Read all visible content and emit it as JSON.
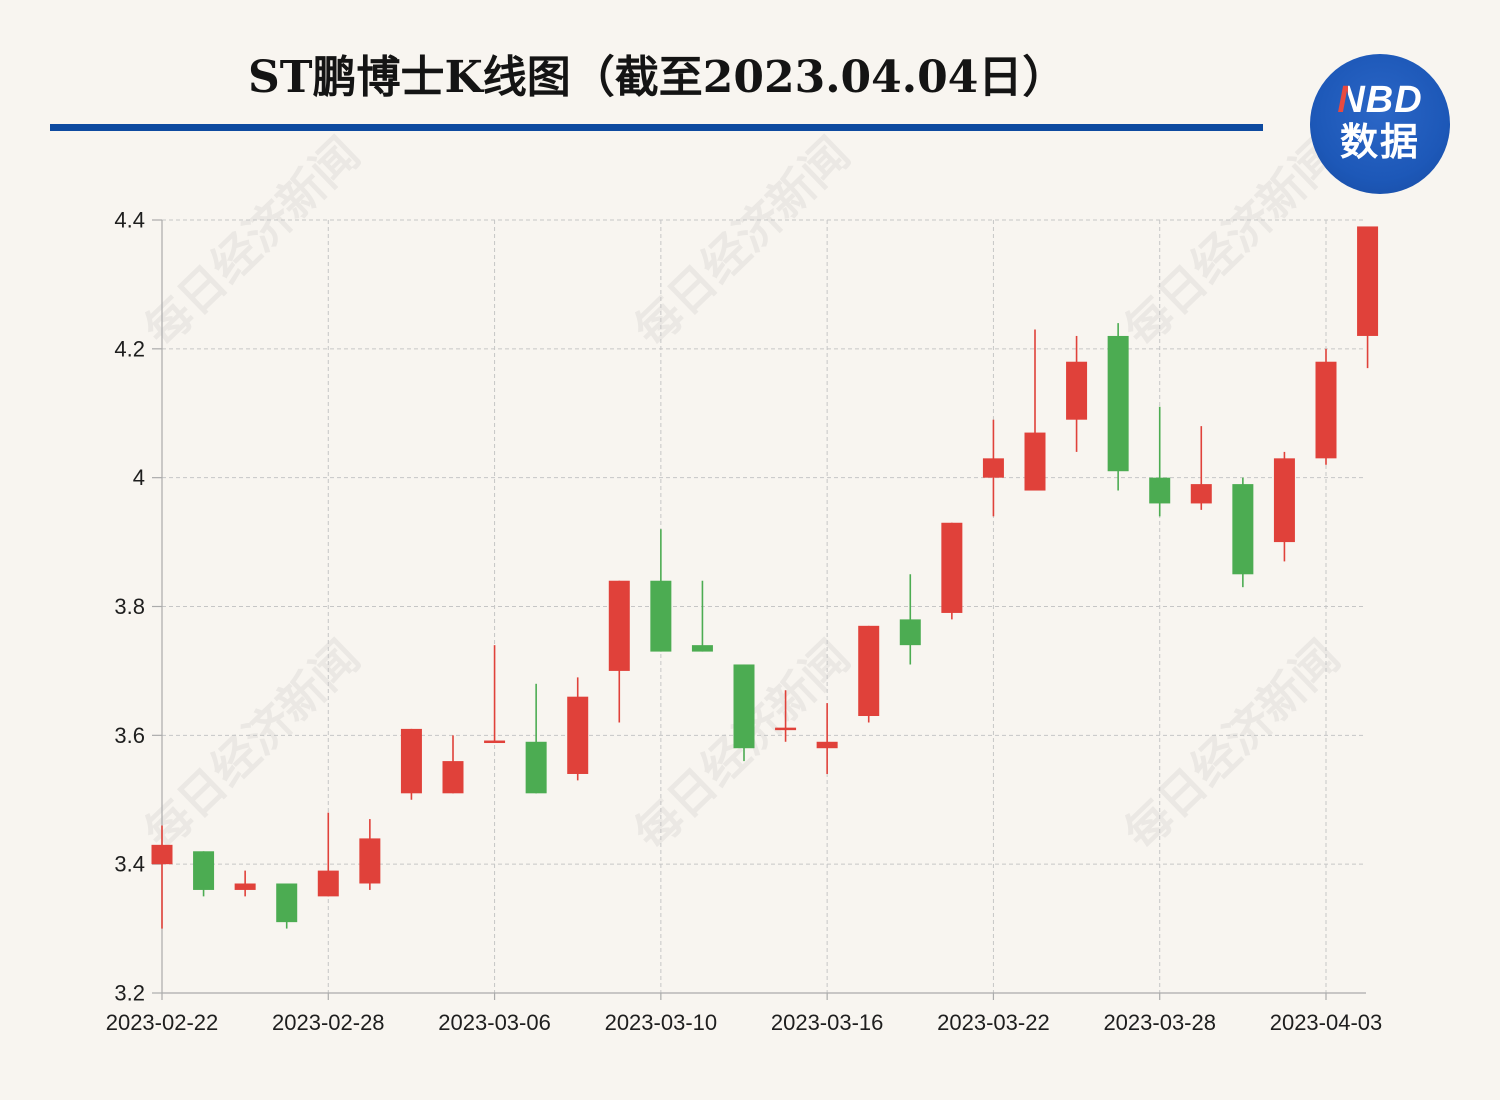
{
  "logo": {
    "line1": "NBD",
    "line2": "数据"
  },
  "watermark": "每日经济新闻",
  "colors": {
    "background": "#f8f5f0",
    "accent": "#0e4aa0",
    "logo": "#1d58b8"
  },
  "chart_data": {
    "type": "candlestick",
    "title": "ST鹏博士K线图（截至2023.04.04日）",
    "ylim": [
      3.2,
      4.4
    ],
    "yticks": [
      3.2,
      3.4,
      3.6,
      3.8,
      4,
      4.2,
      4.4
    ],
    "grid": true,
    "up_color": "#e0413a",
    "down_color": "#4cac52",
    "candles": [
      {
        "date": "2023-02-22",
        "open": 3.4,
        "high": 3.46,
        "low": 3.3,
        "close": 3.43
      },
      {
        "open": 3.42,
        "high": 3.42,
        "low": 3.35,
        "close": 3.36
      },
      {
        "open": 3.36,
        "high": 3.39,
        "low": 3.35,
        "close": 3.37
      },
      {
        "open": 3.37,
        "high": 3.37,
        "low": 3.3,
        "close": 3.31
      },
      {
        "date": "2023-02-28",
        "open": 3.35,
        "high": 3.48,
        "low": 3.35,
        "close": 3.39
      },
      {
        "open": 3.37,
        "high": 3.47,
        "low": 3.36,
        "close": 3.44
      },
      {
        "open": 3.51,
        "high": 3.61,
        "low": 3.5,
        "close": 3.61
      },
      {
        "open": 3.51,
        "high": 3.6,
        "low": 3.51,
        "close": 3.56
      },
      {
        "date": "2023-03-06",
        "open": 3.59,
        "high": 3.74,
        "low": 3.59,
        "close": 3.59
      },
      {
        "open": 3.59,
        "high": 3.68,
        "low": 3.51,
        "close": 3.51
      },
      {
        "open": 3.54,
        "high": 3.69,
        "low": 3.53,
        "close": 3.66
      },
      {
        "open": 3.7,
        "high": 3.84,
        "low": 3.62,
        "close": 3.84
      },
      {
        "date": "2023-03-10",
        "open": 3.84,
        "high": 3.92,
        "low": 3.73,
        "close": 3.73
      },
      {
        "open": 3.74,
        "high": 3.84,
        "low": 3.73,
        "close": 3.73
      },
      {
        "open": 3.71,
        "high": 3.71,
        "low": 3.56,
        "close": 3.58
      },
      {
        "open": 3.61,
        "high": 3.67,
        "low": 3.59,
        "close": 3.61
      },
      {
        "date": "2023-03-16",
        "open": 3.58,
        "high": 3.65,
        "low": 3.54,
        "close": 3.59
      },
      {
        "open": 3.63,
        "high": 3.77,
        "low": 3.62,
        "close": 3.77
      },
      {
        "open": 3.78,
        "high": 3.85,
        "low": 3.71,
        "close": 3.74
      },
      {
        "open": 3.79,
        "high": 3.93,
        "low": 3.78,
        "close": 3.93
      },
      {
        "date": "2023-03-22",
        "open": 4.0,
        "high": 4.09,
        "low": 3.94,
        "close": 4.03
      },
      {
        "open": 3.98,
        "high": 4.23,
        "low": 3.98,
        "close": 4.07
      },
      {
        "open": 4.09,
        "high": 4.22,
        "low": 4.04,
        "close": 4.18
      },
      {
        "open": 4.22,
        "high": 4.24,
        "low": 3.98,
        "close": 4.01
      },
      {
        "date": "2023-03-28",
        "open": 4.0,
        "high": 4.11,
        "low": 3.94,
        "close": 3.96
      },
      {
        "open": 3.96,
        "high": 4.08,
        "low": 3.95,
        "close": 3.99
      },
      {
        "open": 3.99,
        "high": 4.0,
        "low": 3.83,
        "close": 3.85
      },
      {
        "open": 3.9,
        "high": 4.04,
        "low": 3.87,
        "close": 4.03
      },
      {
        "date": "2023-04-03",
        "open": 4.03,
        "high": 4.2,
        "low": 4.02,
        "close": 4.18
      },
      {
        "open": 4.22,
        "high": 4.39,
        "low": 4.17,
        "close": 4.39
      }
    ]
  }
}
